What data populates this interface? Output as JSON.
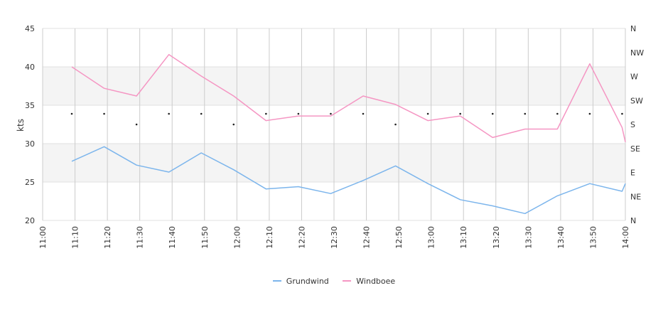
{
  "chart_data": {
    "type": "line",
    "title": "",
    "xlabel": "",
    "ylabel": "kts",
    "ylim": [
      20,
      45
    ],
    "y_ticks": [
      "20",
      "25",
      "30",
      "35",
      "40",
      "45"
    ],
    "right_axis_ticks": [
      "N",
      "NE",
      "E",
      "SE",
      "S",
      "SW",
      "W",
      "NW",
      "N"
    ],
    "grid": true,
    "legend_position": "bottom",
    "x_ticks": [
      "11:00",
      "11:10",
      "11:20",
      "11:30",
      "11:40",
      "11:50",
      "12:00",
      "12:10",
      "12:20",
      "12:30",
      "12:40",
      "12:50",
      "13:00",
      "13:10",
      "13:20",
      "13:30",
      "13:40",
      "13:50",
      "14:00"
    ],
    "x": [
      "11:09",
      "11:19",
      "11:29",
      "11:39",
      "11:49",
      "11:59",
      "12:09",
      "12:19",
      "12:29",
      "12:39",
      "12:49",
      "12:59",
      "13:09",
      "13:19",
      "13:29",
      "13:39",
      "13:49",
      "13:59",
      "14:00"
    ],
    "series": [
      {
        "name": "Grundwind",
        "color": "#7cb5ec",
        "values": [
          27.7,
          29.6,
          27.2,
          26.3,
          28.8,
          26.6,
          24.1,
          24.4,
          23.5,
          25.2,
          27.1,
          24.8,
          22.7,
          21.9,
          20.9,
          23.2,
          24.8,
          23.8,
          24.8
        ]
      },
      {
        "name": "Windboee",
        "color": "#f596c3",
        "values": [
          40.0,
          37.2,
          36.2,
          41.6,
          38.8,
          36.2,
          33.0,
          33.6,
          33.6,
          36.2,
          35.1,
          33.0,
          33.6,
          30.8,
          31.9,
          31.9,
          40.4,
          32.1,
          30.2
        ]
      }
    ],
    "direction_markers": {
      "x": [
        "11:09",
        "11:19",
        "11:29",
        "11:39",
        "11:49",
        "11:59",
        "12:09",
        "12:19",
        "12:29",
        "12:39",
        "12:49",
        "12:59",
        "13:09",
        "13:19",
        "13:29",
        "13:39",
        "13:49",
        "13:59"
      ],
      "direction_deg": [
        200,
        200,
        180,
        200,
        200,
        180,
        200,
        200,
        200,
        200,
        180,
        200,
        200,
        200,
        200,
        200,
        200,
        200
      ]
    }
  }
}
